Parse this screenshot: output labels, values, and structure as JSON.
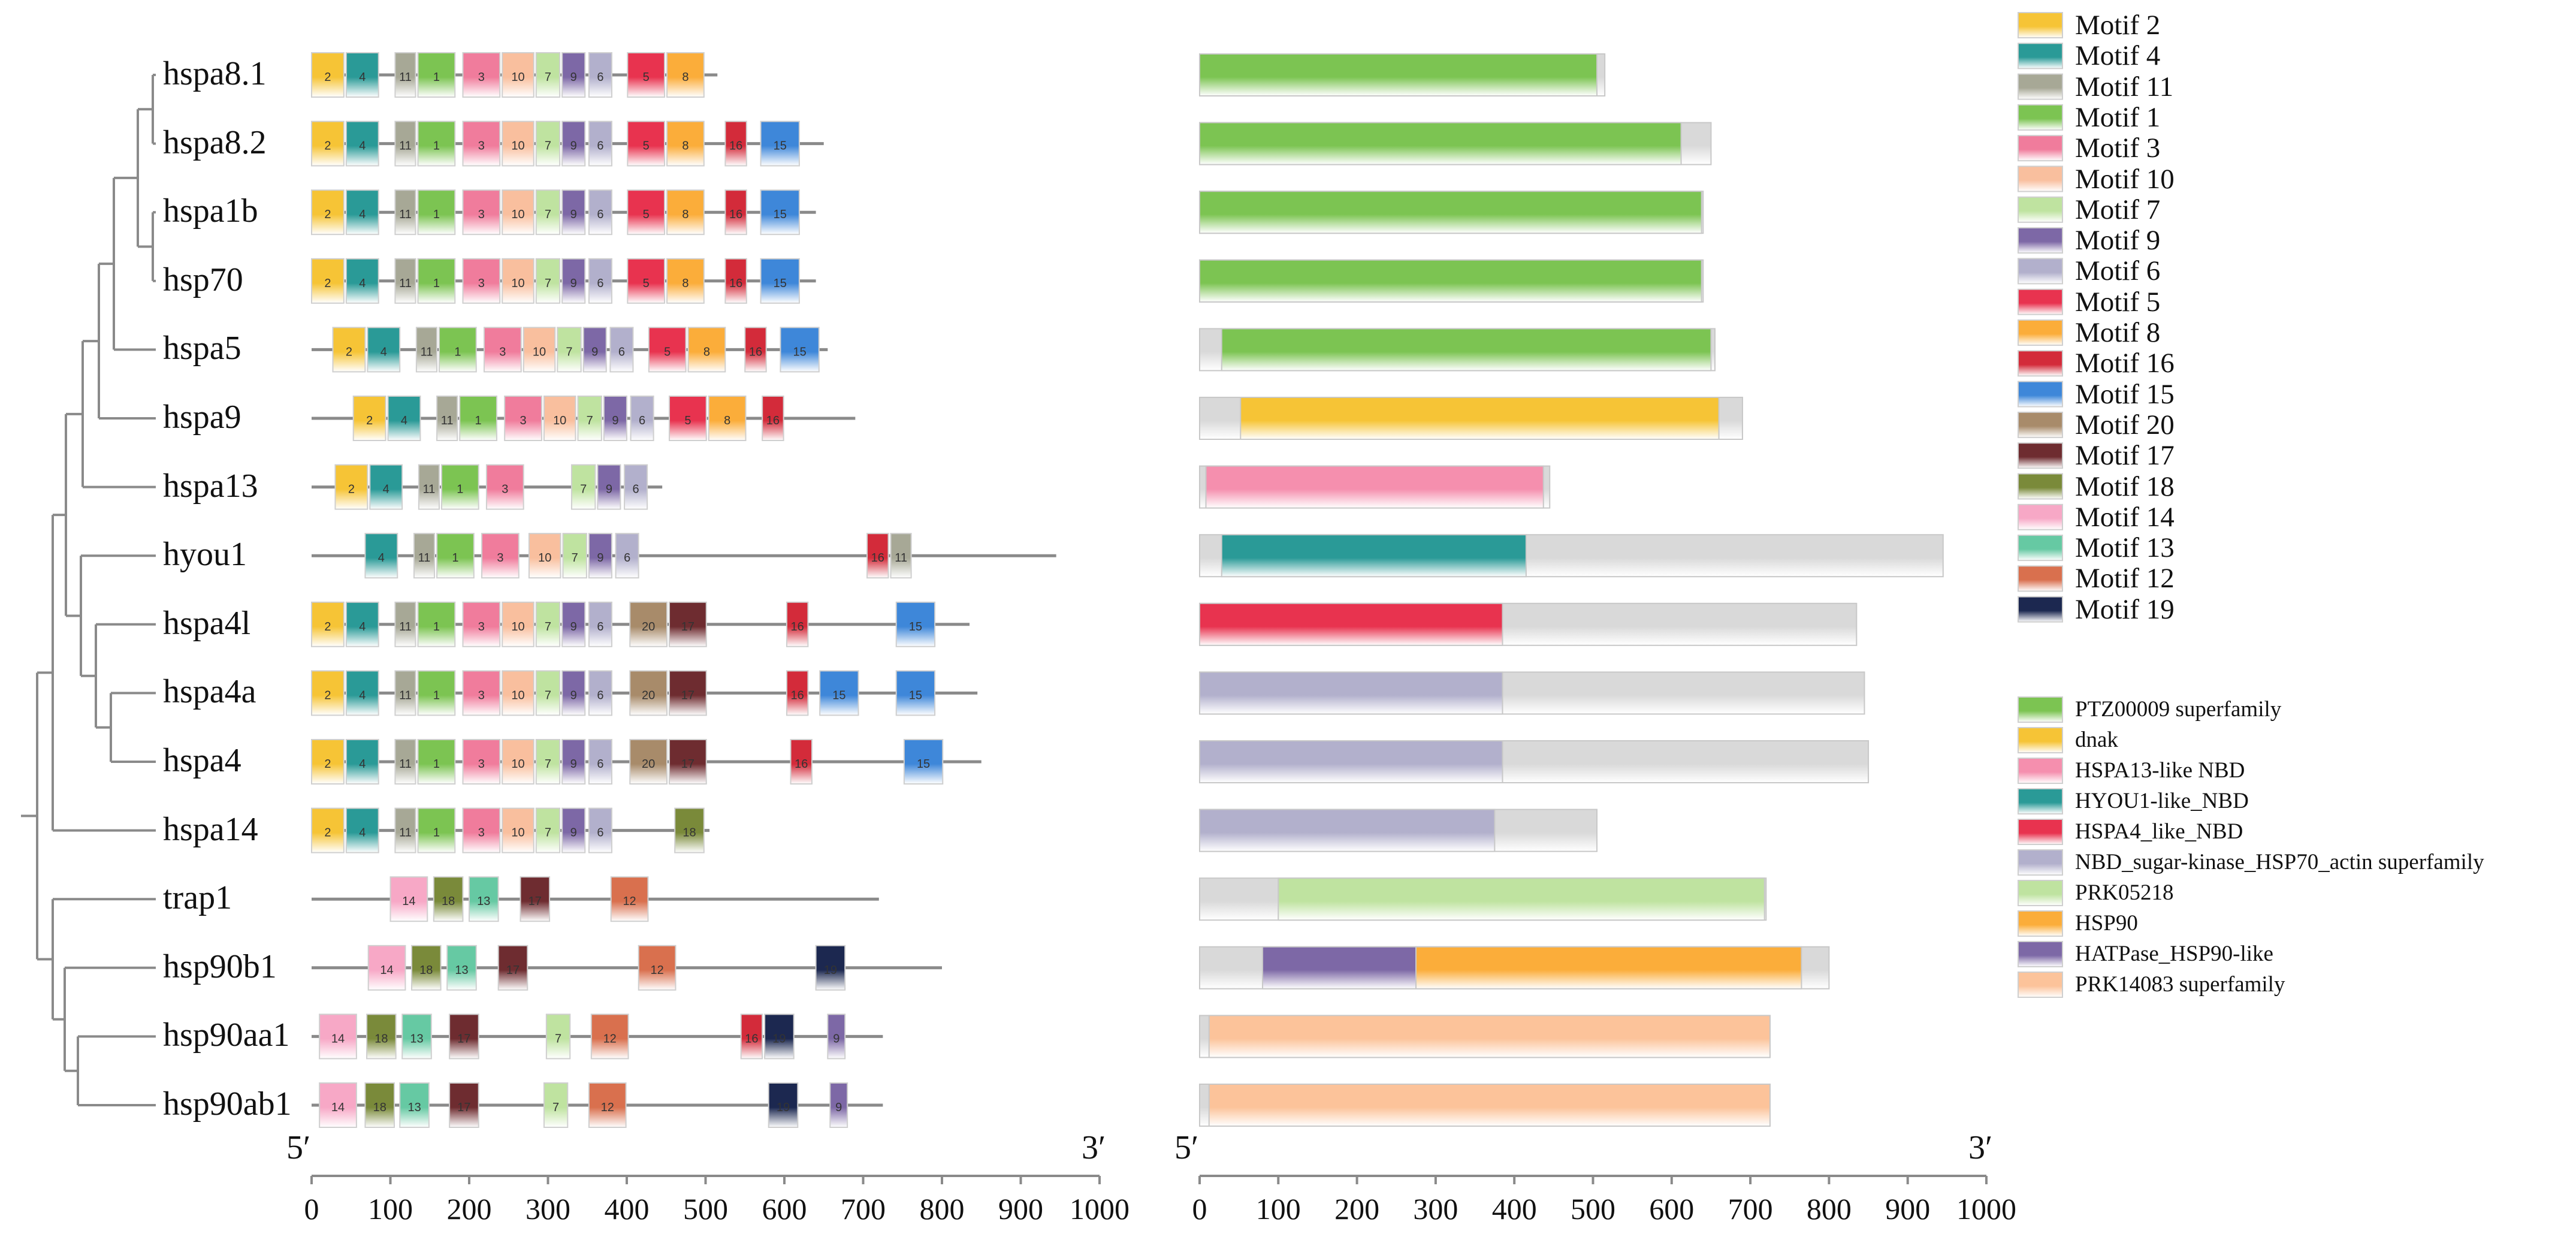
{
  "genes": [
    "hspa8.1",
    "hspa8.2",
    "hspa1b",
    "hsp70",
    "hspa5",
    "hspa9",
    "hspa13",
    "hyou1",
    "hspa4l",
    "hspa4a",
    "hspa4",
    "hspa14",
    "trap1",
    "hsp90b1",
    "hsp90aa1",
    "hsp90ab1"
  ],
  "motif_legend": [
    {
      "id": "2",
      "label": "Motif 2",
      "color": "#f6c436"
    },
    {
      "id": "4",
      "label": "Motif 4",
      "color": "#2a9a97"
    },
    {
      "id": "11",
      "label": "Motif 11",
      "color": "#a7a896"
    },
    {
      "id": "1",
      "label": "Motif 1",
      "color": "#7cc452"
    },
    {
      "id": "3",
      "label": "Motif 3",
      "color": "#f07c9c"
    },
    {
      "id": "10",
      "label": "Motif 10",
      "color": "#f9bf9e"
    },
    {
      "id": "7",
      "label": "Motif 7",
      "color": "#bfe3a0"
    },
    {
      "id": "9",
      "label": "Motif 9",
      "color": "#7d68a6"
    },
    {
      "id": "6",
      "label": "Motif 6",
      "color": "#b2b0cc"
    },
    {
      "id": "5",
      "label": "Motif 5",
      "color": "#e8334f"
    },
    {
      "id": "8",
      "label": "Motif 8",
      "color": "#fbad3a"
    },
    {
      "id": "16",
      "label": "Motif 16",
      "color": "#d32b3a"
    },
    {
      "id": "15",
      "label": "Motif 15",
      "color": "#3e87d9"
    },
    {
      "id": "20",
      "label": "Motif 20",
      "color": "#a88b6a"
    },
    {
      "id": "17",
      "label": "Motif 17",
      "color": "#6e2c30"
    },
    {
      "id": "18",
      "label": "Motif 18",
      "color": "#7a8a3a"
    },
    {
      "id": "14",
      "label": "Motif 14",
      "color": "#f7a8c6"
    },
    {
      "id": "13",
      "label": "Motif 13",
      "color": "#66c9a3"
    },
    {
      "id": "12",
      "label": "Motif 12",
      "color": "#d9704e"
    },
    {
      "id": "19",
      "label": "Motif 19",
      "color": "#1c2850"
    }
  ],
  "domain_legend": [
    {
      "label": "PTZ00009 superfamily",
      "color": "#7cc452"
    },
    {
      "label": "dnak",
      "color": "#f6c436"
    },
    {
      "label": "HSPA13-like  NBD",
      "color": "#f58fae"
    },
    {
      "label": "HYOU1-like_NBD",
      "color": "#2a9a97"
    },
    {
      "label": "HSPA4_like_NBD",
      "color": "#e8334f"
    },
    {
      "label": "NBD_sugar-kinase_HSP70_actin superfamily",
      "color": "#b2b0cc"
    },
    {
      "label": "PRK05218",
      "color": "#bfe3a0"
    },
    {
      "label": "HSP90",
      "color": "#fbad3a"
    },
    {
      "label": "HATPase_HSP90-like",
      "color": "#7d68a6"
    },
    {
      "label": "PRK14083 superfamily",
      "color": "#fcc39a"
    }
  ],
  "motif_rows": [
    {
      "length": 515,
      "motifs": [
        [
          "2",
          0,
          44
        ],
        [
          "4",
          44,
          88
        ],
        [
          "11",
          106,
          135
        ],
        [
          "1",
          135,
          185
        ],
        [
          "3",
          192,
          242
        ],
        [
          "10",
          242,
          285
        ],
        [
          "7",
          285,
          318
        ],
        [
          "9",
          318,
          350
        ],
        [
          "6",
          352,
          384
        ],
        [
          "5",
          401,
          451
        ],
        [
          "8",
          451,
          501
        ]
      ]
    },
    {
      "length": 650,
      "motifs": [
        [
          "2",
          0,
          44
        ],
        [
          "4",
          44,
          88
        ],
        [
          "11",
          106,
          135
        ],
        [
          "1",
          135,
          185
        ],
        [
          "3",
          192,
          242
        ],
        [
          "10",
          242,
          285
        ],
        [
          "7",
          285,
          318
        ],
        [
          "9",
          318,
          350
        ],
        [
          "6",
          352,
          384
        ],
        [
          "5",
          401,
          451
        ],
        [
          "8",
          451,
          501
        ],
        [
          "16",
          525,
          555
        ],
        [
          "15",
          570,
          622
        ]
      ]
    },
    {
      "length": 640,
      "motifs": [
        [
          "2",
          0,
          44
        ],
        [
          "4",
          44,
          88
        ],
        [
          "11",
          106,
          135
        ],
        [
          "1",
          135,
          185
        ],
        [
          "3",
          192,
          242
        ],
        [
          "10",
          242,
          285
        ],
        [
          "7",
          285,
          318
        ],
        [
          "9",
          318,
          350
        ],
        [
          "6",
          352,
          384
        ],
        [
          "5",
          401,
          451
        ],
        [
          "8",
          451,
          501
        ],
        [
          "16",
          525,
          555
        ],
        [
          "15",
          570,
          622
        ]
      ]
    },
    {
      "length": 640,
      "motifs": [
        [
          "2",
          0,
          44
        ],
        [
          "4",
          44,
          88
        ],
        [
          "11",
          106,
          135
        ],
        [
          "1",
          135,
          185
        ],
        [
          "3",
          192,
          242
        ],
        [
          "10",
          242,
          285
        ],
        [
          "7",
          285,
          318
        ],
        [
          "9",
          318,
          350
        ],
        [
          "6",
          352,
          384
        ],
        [
          "5",
          401,
          451
        ],
        [
          "8",
          451,
          501
        ],
        [
          "16",
          525,
          555
        ],
        [
          "15",
          570,
          622
        ]
      ]
    },
    {
      "length": 655,
      "motifs": [
        [
          "2",
          27,
          71
        ],
        [
          "4",
          71,
          115
        ],
        [
          "11",
          133,
          162
        ],
        [
          "1",
          162,
          212
        ],
        [
          "3",
          219,
          269
        ],
        [
          "10",
          269,
          312
        ],
        [
          "7",
          312,
          345
        ],
        [
          "9",
          345,
          377
        ],
        [
          "6",
          379,
          411
        ],
        [
          "5",
          428,
          478
        ],
        [
          "8",
          478,
          528
        ],
        [
          "16",
          550,
          580
        ],
        [
          "15",
          595,
          647
        ]
      ]
    },
    {
      "length": 690,
      "motifs": [
        [
          "2",
          53,
          97
        ],
        [
          "4",
          97,
          141
        ],
        [
          "11",
          159,
          188
        ],
        [
          "1",
          188,
          238
        ],
        [
          "3",
          245,
          295
        ],
        [
          "10",
          295,
          338
        ],
        [
          "7",
          338,
          371
        ],
        [
          "9",
          371,
          403
        ],
        [
          "6",
          405,
          437
        ],
        [
          "5",
          454,
          504
        ],
        [
          "8",
          504,
          554
        ],
        [
          "16",
          572,
          602
        ]
      ]
    },
    {
      "length": 445,
      "motifs": [
        [
          "2",
          30,
          74
        ],
        [
          "4",
          74,
          118
        ],
        [
          "11",
          136,
          165
        ],
        [
          "1",
          165,
          215
        ],
        [
          "3",
          222,
          272
        ],
        [
          "7",
          330,
          363
        ],
        [
          "9",
          363,
          395
        ],
        [
          "6",
          397,
          429
        ]
      ]
    },
    {
      "length": 945,
      "motifs": [
        [
          "4",
          68,
          112
        ],
        [
          "11",
          130,
          159
        ],
        [
          "1",
          159,
          209
        ],
        [
          "3",
          216,
          266
        ],
        [
          "10",
          276,
          319
        ],
        [
          "7",
          319,
          352
        ],
        [
          "9",
          352,
          384
        ],
        [
          "6",
          386,
          418
        ],
        [
          "16",
          705,
          735
        ],
        [
          "11",
          735,
          764
        ]
      ]
    },
    {
      "length": 835,
      "motifs": [
        [
          "2",
          0,
          44
        ],
        [
          "4",
          44,
          88
        ],
        [
          "11",
          106,
          135
        ],
        [
          "1",
          135,
          185
        ],
        [
          "3",
          192,
          242
        ],
        [
          "10",
          242,
          285
        ],
        [
          "7",
          285,
          318
        ],
        [
          "9",
          318,
          350
        ],
        [
          "6",
          352,
          384
        ],
        [
          "20",
          404,
          454
        ],
        [
          "17",
          454,
          504
        ],
        [
          "16",
          603,
          633
        ],
        [
          "15",
          742,
          794
        ]
      ]
    },
    {
      "length": 845,
      "motifs": [
        [
          "2",
          0,
          44
        ],
        [
          "4",
          44,
          88
        ],
        [
          "11",
          106,
          135
        ],
        [
          "1",
          135,
          185
        ],
        [
          "3",
          192,
          242
        ],
        [
          "10",
          242,
          285
        ],
        [
          "7",
          285,
          318
        ],
        [
          "9",
          318,
          350
        ],
        [
          "6",
          352,
          384
        ],
        [
          "20",
          404,
          454
        ],
        [
          "17",
          454,
          504
        ],
        [
          "16",
          603,
          633
        ],
        [
          "15",
          645,
          697
        ],
        [
          "15",
          742,
          794
        ]
      ]
    },
    {
      "length": 850,
      "motifs": [
        [
          "2",
          0,
          44
        ],
        [
          "4",
          44,
          88
        ],
        [
          "11",
          106,
          135
        ],
        [
          "1",
          135,
          185
        ],
        [
          "3",
          192,
          242
        ],
        [
          "10",
          242,
          285
        ],
        [
          "7",
          285,
          318
        ],
        [
          "9",
          318,
          350
        ],
        [
          "6",
          352,
          384
        ],
        [
          "20",
          404,
          454
        ],
        [
          "17",
          454,
          504
        ],
        [
          "16",
          608,
          638
        ],
        [
          "15",
          752,
          804
        ]
      ]
    },
    {
      "length": 505,
      "motifs": [
        [
          "2",
          0,
          44
        ],
        [
          "4",
          44,
          88
        ],
        [
          "11",
          106,
          135
        ],
        [
          "1",
          135,
          185
        ],
        [
          "3",
          192,
          242
        ],
        [
          "10",
          242,
          285
        ],
        [
          "7",
          285,
          318
        ],
        [
          "9",
          318,
          350
        ],
        [
          "6",
          352,
          384
        ],
        [
          "18",
          461,
          501
        ]
      ]
    },
    {
      "length": 720,
      "motifs": [
        [
          "14",
          100,
          150
        ],
        [
          "18",
          155,
          195
        ],
        [
          "13",
          200,
          240
        ],
        [
          "17",
          265,
          305
        ],
        [
          "12",
          380,
          430
        ]
      ]
    },
    {
      "length": 800,
      "motifs": [
        [
          "14",
          72,
          122
        ],
        [
          "18",
          127,
          167
        ],
        [
          "13",
          172,
          212
        ],
        [
          "17",
          237,
          277
        ],
        [
          "12",
          415,
          465
        ],
        [
          "19",
          640,
          680
        ]
      ]
    },
    {
      "length": 725,
      "motifs": [
        [
          "14",
          10,
          60
        ],
        [
          "18",
          70,
          110
        ],
        [
          "13",
          115,
          155
        ],
        [
          "17",
          175,
          215
        ],
        [
          "7",
          298,
          331
        ],
        [
          "12",
          355,
          405
        ],
        [
          "16",
          545,
          575
        ],
        [
          "19",
          575,
          615
        ],
        [
          "9",
          655,
          680
        ]
      ]
    },
    {
      "length": 725,
      "motifs": [
        [
          "14",
          10,
          60
        ],
        [
          "18",
          68,
          108
        ],
        [
          "13",
          112,
          152
        ],
        [
          "17",
          175,
          215
        ],
        [
          "7",
          295,
          328
        ],
        [
          "12",
          352,
          402
        ],
        [
          "19",
          580,
          620
        ],
        [
          "9",
          658,
          683
        ]
      ]
    }
  ],
  "domain_rows": [
    {
      "length": 515,
      "domains": [
        [
          0,
          505,
          "#7cc452"
        ]
      ]
    },
    {
      "length": 650,
      "domains": [
        [
          0,
          612,
          "#7cc452"
        ]
      ]
    },
    {
      "length": 640,
      "domains": [
        [
          0,
          638,
          "#7cc452"
        ]
      ]
    },
    {
      "length": 640,
      "domains": [
        [
          0,
          638,
          "#7cc452"
        ]
      ]
    },
    {
      "length": 655,
      "domains": [
        [
          28,
          650,
          "#7cc452"
        ]
      ]
    },
    {
      "length": 690,
      "domains": [
        [
          52,
          660,
          "#f6c436"
        ]
      ]
    },
    {
      "length": 445,
      "domains": [
        [
          8,
          437,
          "#f58fae"
        ]
      ]
    },
    {
      "length": 945,
      "domains": [
        [
          28,
          415,
          "#2a9a97"
        ]
      ]
    },
    {
      "length": 835,
      "domains": [
        [
          0,
          385,
          "#e8334f"
        ]
      ]
    },
    {
      "length": 845,
      "domains": [
        [
          0,
          385,
          "#b2b0cc"
        ]
      ]
    },
    {
      "length": 850,
      "domains": [
        [
          0,
          385,
          "#b2b0cc"
        ]
      ]
    },
    {
      "length": 505,
      "domains": [
        [
          0,
          375,
          "#b2b0cc"
        ]
      ]
    },
    {
      "length": 720,
      "domains": [
        [
          100,
          718,
          "#bfe3a0"
        ]
      ]
    },
    {
      "length": 800,
      "domains": [
        [
          80,
          275,
          "#7d68a6"
        ],
        [
          275,
          765,
          "#fbad3a"
        ]
      ]
    },
    {
      "length": 725,
      "domains": [
        [
          12,
          725,
          "#fcc39a"
        ]
      ]
    },
    {
      "length": 725,
      "domains": [
        [
          12,
          725,
          "#fcc39a"
        ]
      ]
    }
  ],
  "axis": {
    "ticks": [
      "0",
      "100",
      "200",
      "300",
      "400",
      "500",
      "600",
      "700",
      "800",
      "900",
      "1000"
    ],
    "five_prime": "5′",
    "three_prime": "3′"
  }
}
